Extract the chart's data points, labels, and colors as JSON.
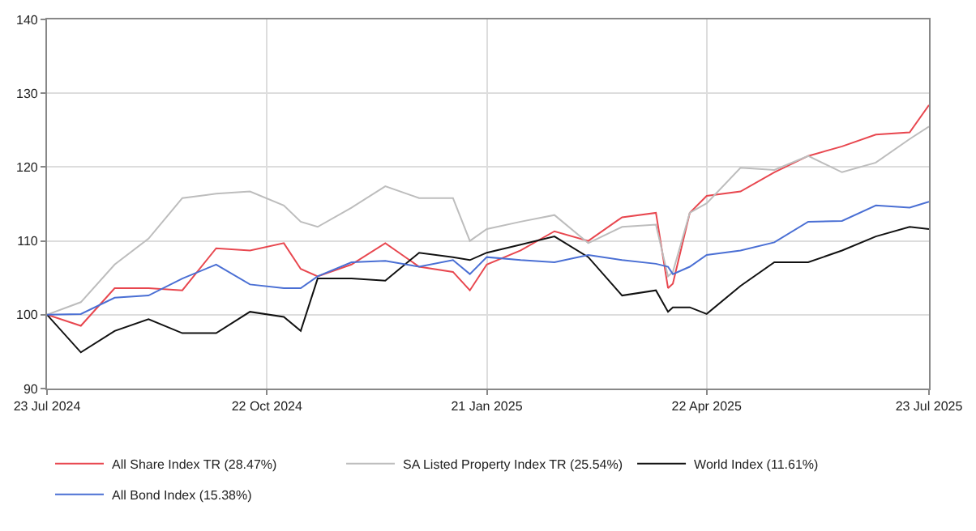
{
  "chart_data": {
    "type": "line",
    "x": [
      "2024-07-23",
      "2024-08-06",
      "2024-08-20",
      "2024-09-03",
      "2024-09-17",
      "2024-10-01",
      "2024-10-15",
      "2024-10-29",
      "2024-11-05",
      "2024-11-12",
      "2024-11-26",
      "2024-12-10",
      "2024-12-24",
      "2025-01-07",
      "2025-01-14",
      "2025-01-21",
      "2025-02-04",
      "2025-02-18",
      "2025-03-04",
      "2025-03-18",
      "2025-04-01",
      "2025-04-06",
      "2025-04-08",
      "2025-04-15",
      "2025-04-22",
      "2025-05-06",
      "2025-05-20",
      "2025-06-03",
      "2025-06-17",
      "2025-07-01",
      "2025-07-15",
      "2025-07-23"
    ],
    "series": [
      {
        "name": "All Share Index TR (28.47%)",
        "color": "#e8474f",
        "values": [
          100,
          98.5,
          103.6,
          103.6,
          103.3,
          109.0,
          108.7,
          109.7,
          106.2,
          105.2,
          106.8,
          109.7,
          106.5,
          105.8,
          103.3,
          106.8,
          108.7,
          111.3,
          110.0,
          113.2,
          113.8,
          103.6,
          104.2,
          113.8,
          116.1,
          116.7,
          119.3,
          121.5,
          122.8,
          124.4,
          124.7,
          128.4
        ]
      },
      {
        "name": "SA Listed Property Index TR (25.54%)",
        "color": "#bdbdbd",
        "values": [
          100,
          101.7,
          106.8,
          110.3,
          115.8,
          116.4,
          116.7,
          114.8,
          112.6,
          111.9,
          114.5,
          117.4,
          115.8,
          115.8,
          110.0,
          111.6,
          112.6,
          113.5,
          109.7,
          111.9,
          112.2,
          105.2,
          105.8,
          113.8,
          115.1,
          119.9,
          119.6,
          121.5,
          119.3,
          120.6,
          123.8,
          125.5
        ]
      },
      {
        "name": "World Index (11.61%)",
        "color": "#111111",
        "values": [
          100,
          94.9,
          97.8,
          99.4,
          97.5,
          97.5,
          100.4,
          99.7,
          97.8,
          104.9,
          104.9,
          104.6,
          108.4,
          107.8,
          107.4,
          108.4,
          109.5,
          110.6,
          107.8,
          102.6,
          103.3,
          100.4,
          101.0,
          101.0,
          100.1,
          103.9,
          107.1,
          107.1,
          108.7,
          110.6,
          111.9,
          111.6
        ]
      },
      {
        "name": "All Bond Index (15.38%)",
        "color": "#4a6fd4",
        "values": [
          100,
          100.1,
          102.3,
          102.6,
          104.9,
          106.8,
          104.1,
          103.6,
          103.6,
          105.2,
          107.1,
          107.3,
          106.5,
          107.4,
          105.5,
          107.8,
          107.4,
          107.1,
          108.1,
          107.4,
          106.9,
          106.5,
          105.5,
          106.5,
          108.1,
          108.7,
          109.8,
          112.6,
          112.7,
          114.8,
          114.5,
          115.3
        ]
      }
    ],
    "xlim": [
      "2024-07-23",
      "2025-07-23"
    ],
    "xticks": [
      {
        "value": "2024-07-23",
        "label": "23 Jul 2024"
      },
      {
        "value": "2024-10-22",
        "label": "22 Oct 2024"
      },
      {
        "value": "2025-01-21",
        "label": "21 Jan 2025"
      },
      {
        "value": "2025-04-22",
        "label": "22 Apr 2025"
      },
      {
        "value": "2025-07-23",
        "label": "23 Jul 2025"
      }
    ],
    "ylim": [
      90,
      140
    ],
    "yticks": [
      90,
      100,
      110,
      120,
      130,
      140
    ],
    "grid": true,
    "legend": "bottom",
    "marker": "none",
    "line_style": "solid"
  }
}
